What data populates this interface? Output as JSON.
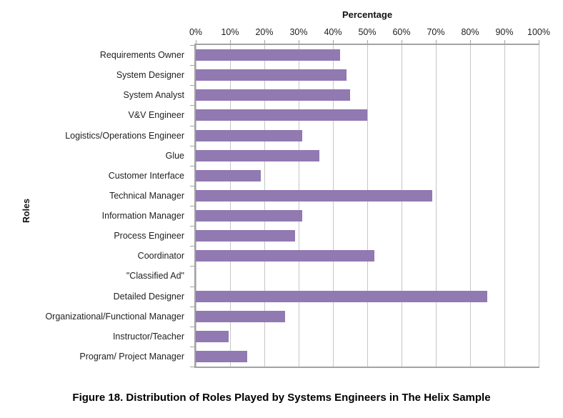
{
  "figure": {
    "caption": "Figure 18. Distribution of Roles Played by Systems Engineers in The Helix Sample"
  },
  "chart_data": {
    "type": "bar",
    "orientation": "horizontal",
    "xlabel": "Percentage",
    "ylabel": "Roles",
    "xlim": [
      0,
      100
    ],
    "x_ticks": [
      "0%",
      "10%",
      "20%",
      "30%",
      "40%",
      "50%",
      "60%",
      "70%",
      "80%",
      "90%",
      "100%"
    ],
    "grid": true,
    "legend": false,
    "categories": [
      "Requirements Owner",
      "System Designer",
      "System Analyst",
      "V&V Engineer",
      "Logistics/Operations Engineer",
      "Glue",
      "Customer Interface",
      "Technical Manager",
      "Information Manager",
      "Process Engineer",
      "Coordinator",
      "\"Classified Ad\"",
      "Detailed Designer",
      "Organizational/Functional Manager",
      "Instructor/Teacher",
      "Program/ Project Manager"
    ],
    "values": [
      42,
      44,
      45,
      50,
      31,
      36,
      19,
      69,
      31,
      29,
      52,
      0,
      85,
      26,
      9.5,
      15
    ],
    "bar_color": "#9179b1",
    "gridline_color": "#c6c6c6",
    "axis_color": "#a3a3a3"
  }
}
